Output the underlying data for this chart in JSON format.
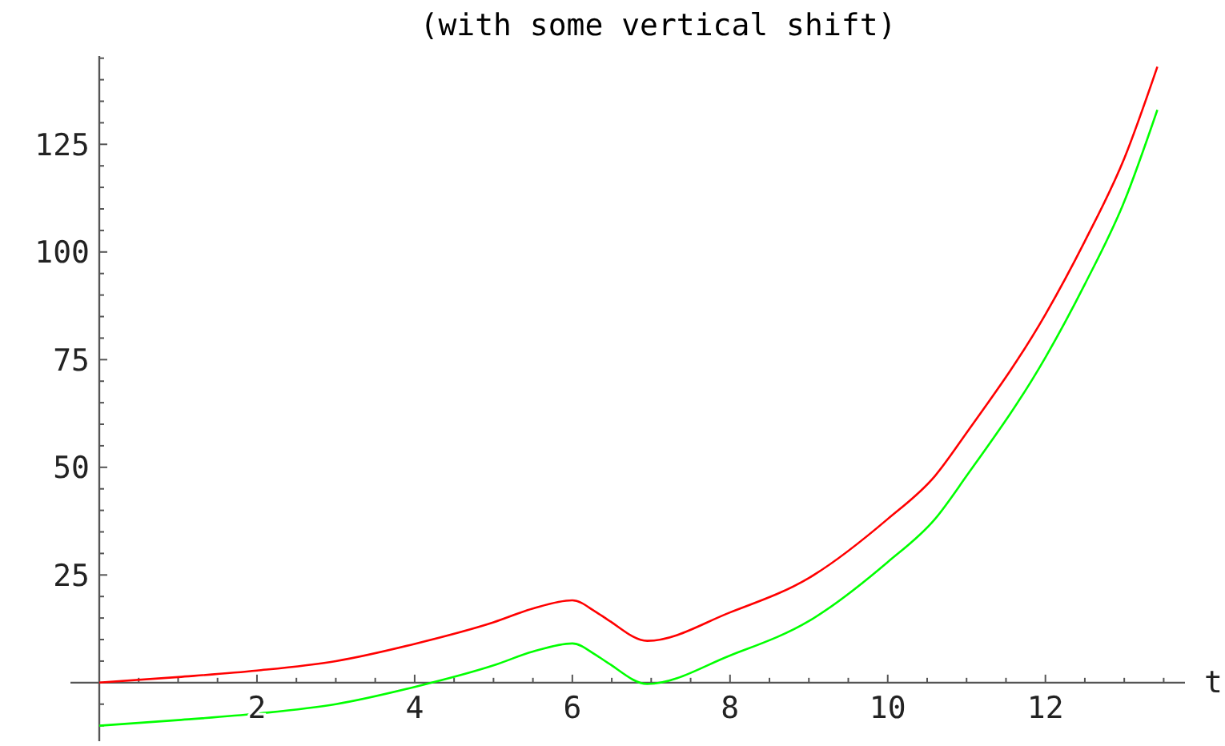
{
  "chart_data": {
    "type": "line",
    "title": "(with some vertical shift)",
    "xlabel": "t",
    "xlim": [
      0,
      13.77
    ],
    "ylim": [
      -13.6,
      145.5
    ],
    "xticks": [
      {
        "value": 0.5,
        "label": null
      },
      {
        "value": 1,
        "label": null
      },
      {
        "value": 1.5,
        "label": null
      },
      2,
      {
        "value": 2.5,
        "label": null
      },
      {
        "value": 3,
        "label": null
      },
      {
        "value": 3.5,
        "label": null
      },
      4,
      {
        "value": 4.5,
        "label": null
      },
      {
        "value": 5,
        "label": null
      },
      {
        "value": 5.5,
        "label": null
      },
      6,
      {
        "value": 6.5,
        "label": null
      },
      {
        "value": 7,
        "label": null
      },
      {
        "value": 7.5,
        "label": null
      },
      8,
      {
        "value": 8.5,
        "label": null
      },
      {
        "value": 9,
        "label": null
      },
      {
        "value": 9.5,
        "label": null
      },
      10,
      {
        "value": 10.5,
        "label": null
      },
      {
        "value": 11,
        "label": null
      },
      {
        "value": 11.5,
        "label": null
      },
      12,
      {
        "value": 12.5,
        "label": null
      },
      {
        "value": 13,
        "label": null
      },
      {
        "value": 13.5,
        "label": null
      }
    ],
    "yticks": [
      {
        "value": -10,
        "label": null
      },
      {
        "value": -5,
        "label": null
      },
      {
        "value": 5,
        "label": null
      },
      {
        "value": 10,
        "label": null
      },
      {
        "value": 15,
        "label": null
      },
      {
        "value": 20,
        "label": null
      },
      25,
      {
        "value": 30,
        "label": null
      },
      {
        "value": 35,
        "label": null
      },
      {
        "value": 40,
        "label": null
      },
      {
        "value": 45,
        "label": null
      },
      50,
      {
        "value": 55,
        "label": null
      },
      {
        "value": 60,
        "label": null
      },
      {
        "value": 65,
        "label": null
      },
      {
        "value": 70,
        "label": null
      },
      75,
      {
        "value": 80,
        "label": null
      },
      {
        "value": 85,
        "label": null
      },
      {
        "value": 90,
        "label": null
      },
      {
        "value": 95,
        "label": null
      },
      100,
      {
        "value": 105,
        "label": null
      },
      {
        "value": 110,
        "label": null
      },
      {
        "value": 115,
        "label": null
      },
      {
        "value": 120,
        "label": null
      },
      125,
      {
        "value": 130,
        "label": null
      },
      {
        "value": 135,
        "label": null
      },
      {
        "value": 140,
        "label": null
      },
      {
        "value": 145,
        "label": null
      }
    ],
    "marker": "none",
    "line_style": "solid",
    "x": [
      0,
      1,
      2,
      3,
      4,
      5,
      5.5,
      6,
      6.3,
      6.45,
      6.95,
      8,
      9,
      10,
      10.6,
      11,
      12,
      12.5,
      13,
      13.42
    ],
    "series": [
      {
        "color": "#ff0000",
        "values": [
          0,
          1.3,
          2.8,
          5,
          9,
          14,
          17.2,
          19.1,
          16.4,
          14.6,
          9.7,
          16.3,
          24.3,
          38,
          48,
          58,
          85.5,
          102.5,
          121.7,
          143
        ]
      },
      {
        "color": "#00ff00",
        "values": [
          -10,
          -8.7,
          -7.2,
          -5,
          -1,
          4,
          7.2,
          9.1,
          6.4,
          4.6,
          -0.3,
          6.3,
          14.3,
          28,
          38,
          48,
          75.5,
          92.5,
          111.7,
          133
        ]
      }
    ]
  }
}
